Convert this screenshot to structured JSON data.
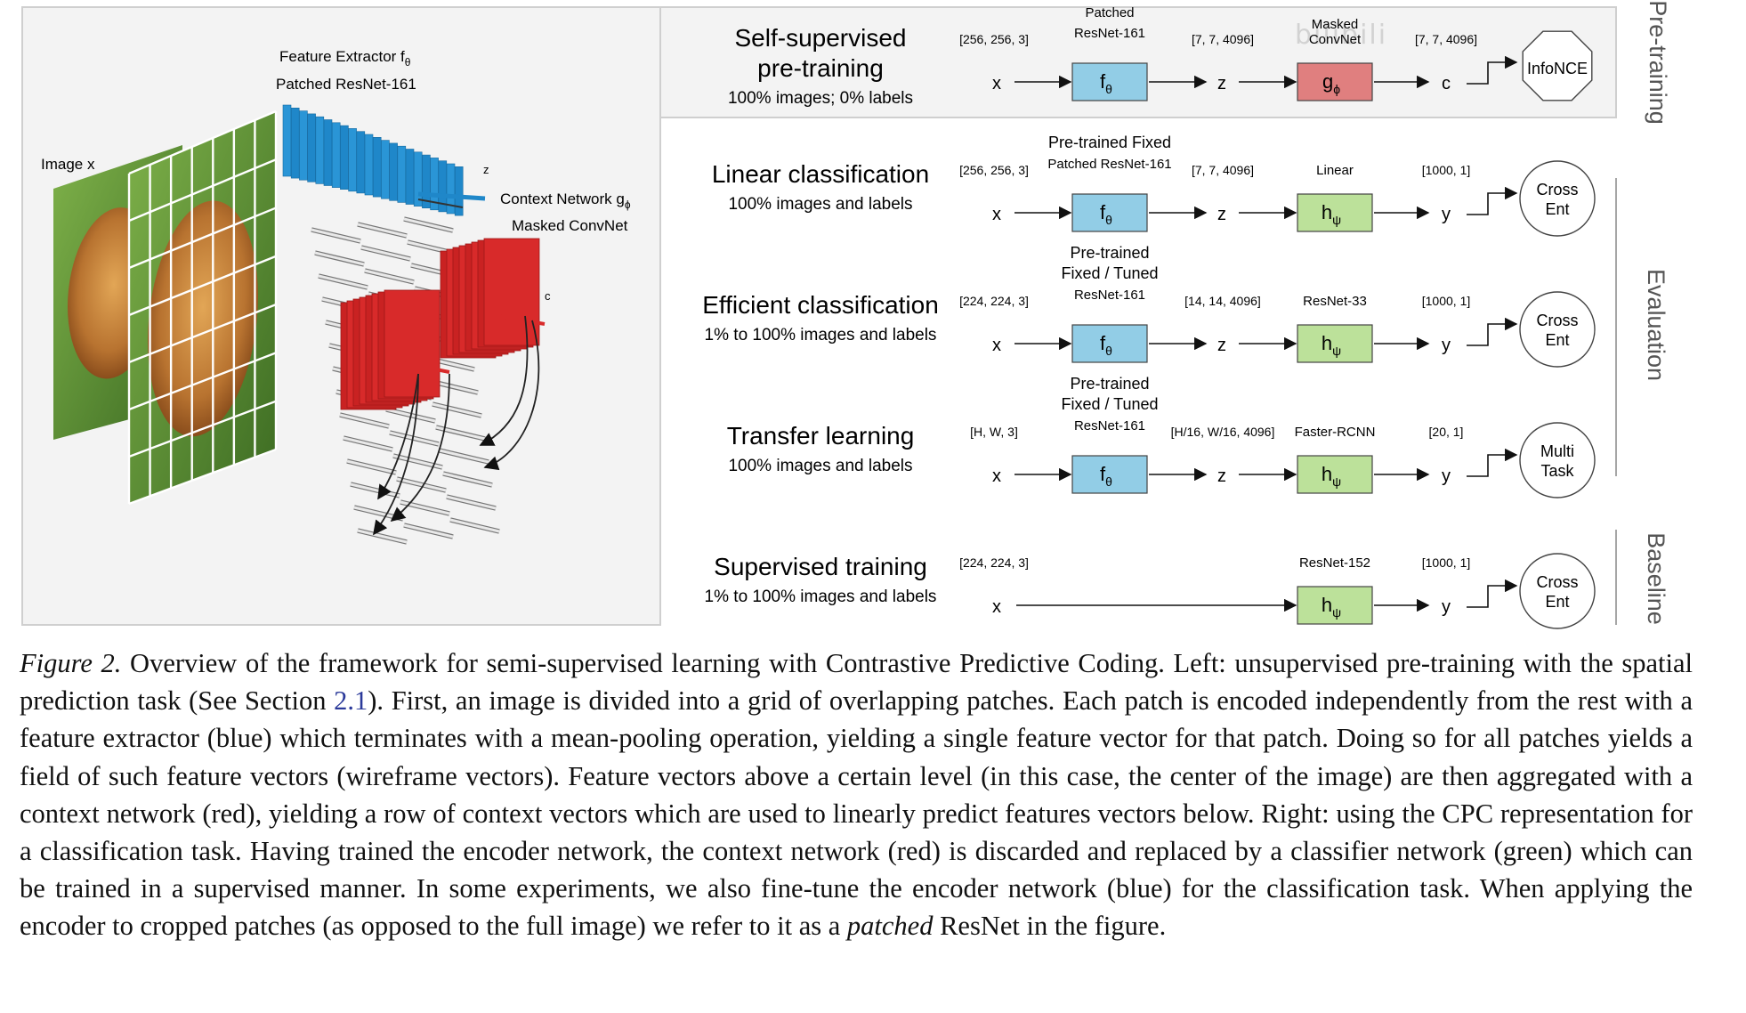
{
  "left_panel": {
    "image_label": "Image x",
    "feature_extractor": "Feature Extractor f",
    "feature_extractor_sub": "θ",
    "feature_extractor_model": "Patched ResNet-161",
    "context_network": "Context Network g",
    "context_network_sub": "ϕ",
    "context_network_model": "Masked ConvNet",
    "z_label": "z",
    "c_label": "c"
  },
  "rows": [
    {
      "title_lines": [
        "Self-supervised",
        "pre-training"
      ],
      "subtitle": "100% images; 0% labels",
      "in_shape": "[256, 256, 3]",
      "x_label": "x",
      "enc_label_lines": [
        "Patched",
        "ResNet-161"
      ],
      "enc_sym": "f",
      "enc_sub": "θ",
      "mid_shape": "[7, 7, 4096]",
      "mid_var": "z",
      "head_label_lines": [
        "Masked",
        "ConvNet"
      ],
      "head_sym": "g",
      "head_sub": "ϕ",
      "out_shape": "[7, 7, 4096]",
      "out_var": "c",
      "loss_lines": [
        "InfoNCE"
      ],
      "head_color": "#e07f7f"
    },
    {
      "title_lines": [
        "Linear classification"
      ],
      "subtitle": "100% images and labels",
      "in_shape": "[256, 256, 3]",
      "x_label": "x",
      "enc_label_lines": [
        "Pre-trained Fixed",
        "Patched ResNet-161"
      ],
      "enc_sym": "f",
      "enc_sub": "θ",
      "mid_shape": "[7, 7, 4096]",
      "mid_var": "z",
      "head_label_lines": [
        "Linear"
      ],
      "head_sym": "h",
      "head_sub": "ψ",
      "out_shape": "[1000, 1]",
      "out_var": "y",
      "loss_lines": [
        "Cross",
        "Ent"
      ],
      "head_color": "#bce19a"
    },
    {
      "title_lines": [
        "Efficient classification"
      ],
      "subtitle": "1% to 100% images and labels",
      "in_shape": "[224, 224, 3]",
      "x_label": "x",
      "enc_label_lines": [
        "Pre-trained",
        "Fixed / Tuned",
        "ResNet-161"
      ],
      "enc_sym": "f",
      "enc_sub": "θ",
      "mid_shape": "[14, 14, 4096]",
      "mid_var": "z",
      "head_label_lines": [
        "ResNet-33"
      ],
      "head_sym": "h",
      "head_sub": "ψ",
      "out_shape": "[1000, 1]",
      "out_var": "y",
      "loss_lines": [
        "Cross",
        "Ent"
      ],
      "head_color": "#bce19a"
    },
    {
      "title_lines": [
        "Transfer learning"
      ],
      "subtitle": "100% images and labels",
      "in_shape": "[H, W, 3]",
      "x_label": "x",
      "enc_label_lines": [
        "Pre-trained",
        "Fixed / Tuned",
        "ResNet-161"
      ],
      "enc_sym": "f",
      "enc_sub": "θ",
      "mid_shape": "[H/16, W/16, 4096]",
      "mid_var": "z",
      "head_label_lines": [
        "Faster-RCNN"
      ],
      "head_sym": "h",
      "head_sub": "ψ",
      "out_shape": "[20, 1]",
      "out_var": "y",
      "loss_lines": [
        "Multi",
        "Task"
      ],
      "head_color": "#bce19a"
    },
    {
      "title_lines": [
        "Supervised training"
      ],
      "subtitle": "1% to 100% images and labels",
      "in_shape": "[224, 224, 3]",
      "x_label": "x",
      "head_label_lines": [
        "ResNet-152"
      ],
      "head_sym": "h",
      "head_sub": "ψ",
      "out_shape": "[1000, 1]",
      "out_var": "y",
      "loss_lines": [
        "Cross",
        "Ent"
      ],
      "head_color": "#bce19a"
    }
  ],
  "side_labels": {
    "pretraining": "Pre-training",
    "evaluation": "Evaluation",
    "baseline": "Baseline"
  },
  "colors": {
    "encoder": "#92cde6",
    "context": "#e07f7f",
    "classifier": "#bce19a",
    "blue_stack": "#1f87c9",
    "red_stack": "#d82a2a"
  },
  "watermark": "bilibili",
  "caption": {
    "label": "Figure 2.",
    "part1": " Overview of the framework for semi-supervised learning with Contrastive Predictive Coding. Left: unsupervised pre-training with the spatial prediction task (See Section ",
    "ref": "2.1",
    "part2": "). First, an image is divided into a grid of overlapping patches. Each patch is encoded independently from the rest with a feature extractor (blue) which terminates with a mean-pooling operation, yielding a single feature vector for that patch. Doing so for all patches yields a field of such feature vectors (wireframe vectors). Feature vectors above a certain level (in this case, the center of the image) are then aggregated with a context network (red), yielding a row of context vectors which are used to linearly predict features vectors below. Right: using the CPC representation for a classification task. Having trained the encoder network, the context network (red) is discarded and replaced by a classifier network (green) which can be trained in a supervised manner. In some experiments, we also fine-tune the encoder network (blue) for the classification task. When applying the encoder to cropped patches (as opposed to the full image) we refer to it as a ",
    "italic": "patched",
    "part3": " ResNet in the figure."
  }
}
